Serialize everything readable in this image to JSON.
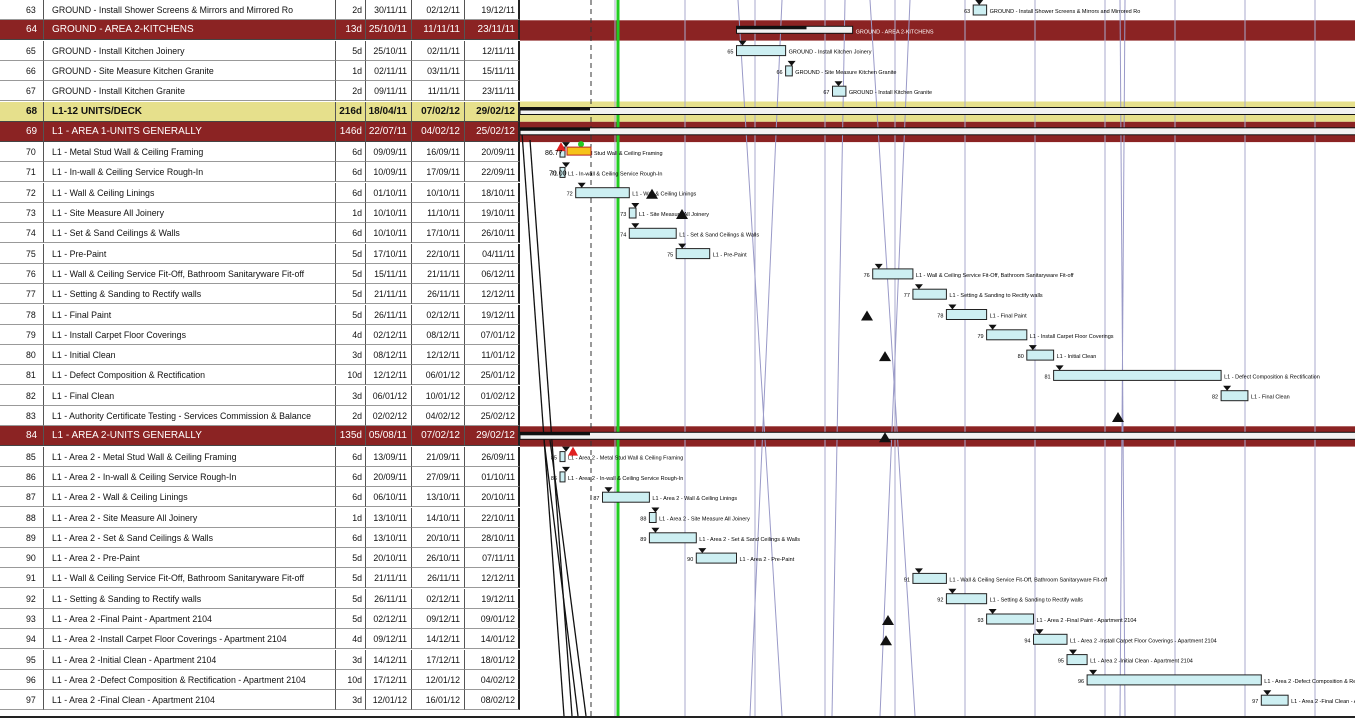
{
  "rows": [
    {
      "id": "63",
      "name": "GROUND - Install Shower Screens & Mirrors and Mirrored Ro",
      "dur": "2d",
      "start": "30/11/11",
      "finish": "02/12/11",
      "late": "19/12/11",
      "type": "task",
      "bar": [
        30.33,
        32.33
      ],
      "tag": "63",
      "label": "GROUND - Install Shower Screens & Mirrors and Mirrored Ro"
    },
    {
      "id": "64",
      "name": "GROUND - AREA 2-KITCHENS",
      "dur": "13d",
      "start": "25/10/11",
      "finish": "11/11/11",
      "late": "23/11/11",
      "type": "summary",
      "bar": [
        -5,
        12.33
      ],
      "tag": "64",
      "label": "GROUND - AREA 2-KITCHENS"
    },
    {
      "id": "65",
      "name": "GROUND - Install Kitchen Joinery",
      "dur": "5d",
      "start": "25/10/11",
      "finish": "02/11/11",
      "late": "12/11/11",
      "type": "task",
      "bar": [
        -5,
        2.33
      ],
      "tag": "65",
      "label": "GROUND - Install Kitchen Joinery"
    },
    {
      "id": "66",
      "name": "GROUND - Site Measure Kitchen Granite",
      "dur": "1d",
      "start": "02/11/11",
      "finish": "03/11/11",
      "late": "15/11/11",
      "type": "task",
      "bar": [
        2.33,
        3.33
      ],
      "tag": "66",
      "label": "GROUND - Site Measure Kitchen Granite"
    },
    {
      "id": "67",
      "name": "GROUND - Install Kitchen Granite",
      "dur": "2d",
      "start": "09/11/11",
      "finish": "11/11/11",
      "late": "23/11/11",
      "type": "task",
      "bar": [
        9.33,
        11.33
      ],
      "tag": "67",
      "label": "GROUND - Install Kitchen Granite"
    },
    {
      "id": "68",
      "name": "L1-12 UNITS/DECK",
      "dur": "216d",
      "start": "18/04/11",
      "finish": "07/02/12",
      "late": "29/02/12",
      "type": "project",
      "bar": [
        -195,
        99.33
      ],
      "tag": "",
      "label": "L1-12 UNITS/DECK"
    },
    {
      "id": "69",
      "name": "L1 - AREA 1-UNITS GENERALLY",
      "dur": "146d",
      "start": "22/07/11",
      "finish": "04/02/12",
      "late": "25/02/12",
      "type": "summary",
      "bar": [
        -100,
        96.33
      ],
      "tag": "",
      "label": "L1 - AREA 1-UNITS GENERALLY"
    },
    {
      "id": "70",
      "name": "L1 - Metal Stud Wall & Ceiling Framing",
      "dur": "6d",
      "start": "09/09/11",
      "finish": "16/09/11",
      "late": "20/09/11",
      "type": "task",
      "bar": [
        -50,
        -43
      ],
      "tag": "",
      "label": "L1 - Metal Stud Wall & Ceiling Framing"
    },
    {
      "id": "71",
      "name": "L1 - In-wall & Ceiling Service Rough-In",
      "dur": "6d",
      "start": "10/09/11",
      "finish": "17/09/11",
      "late": "22/09/11",
      "type": "task",
      "bar": [
        -49,
        -42
      ],
      "tag": "71",
      "label": "L1 - In-wall & Ceiling Service Rough-In"
    },
    {
      "id": "72",
      "name": "L1 - Wall & Ceiling Linings",
      "dur": "6d",
      "start": "01/10/11",
      "finish": "10/10/11",
      "late": "18/10/11",
      "type": "task",
      "bar": [
        -29,
        -21
      ],
      "tag": "72",
      "label": "L1 - Wall & Ceiling Linings"
    },
    {
      "id": "73",
      "name": "L1 - Site Measure All Joinery",
      "dur": "1d",
      "start": "10/10/11",
      "finish": "11/10/11",
      "late": "19/10/11",
      "type": "task",
      "bar": [
        -21,
        -20
      ],
      "tag": "73",
      "label": "L1 - Site Measure All Joinery"
    },
    {
      "id": "74",
      "name": "L1 - Set & Sand Ceilings & Walls",
      "dur": "6d",
      "start": "10/10/11",
      "finish": "17/10/11",
      "late": "26/10/11",
      "type": "task",
      "bar": [
        -21,
        -14
      ],
      "tag": "74",
      "label": "L1 - Set & Sand Ceilings & Walls"
    },
    {
      "id": "75",
      "name": "L1 - Pre-Paint",
      "dur": "5d",
      "start": "17/10/11",
      "finish": "22/10/11",
      "late": "04/11/11",
      "type": "task",
      "bar": [
        -14,
        -9
      ],
      "tag": "75",
      "label": "L1 - Pre-Paint"
    },
    {
      "id": "76",
      "name": "L1 - Wall & Ceiling Service Fit-Off, Bathroom Sanitaryware Fit-off",
      "dur": "5d",
      "start": "15/11/11",
      "finish": "21/11/11",
      "late": "06/12/11",
      "type": "task",
      "bar": [
        15.33,
        21.33
      ],
      "tag": "76",
      "label": "L1 - Wall & Ceiling Service Fit-Off, Bathroom Sanitaryware Fit-off"
    },
    {
      "id": "77",
      "name": "L1 - Setting & Sanding to Rectify walls",
      "dur": "5d",
      "start": "21/11/11",
      "finish": "26/11/11",
      "late": "12/12/11",
      "type": "task",
      "bar": [
        21.33,
        26.33
      ],
      "tag": "77",
      "label": "L1 - Setting & Sanding to Rectify walls"
    },
    {
      "id": "78",
      "name": "L1 - Final Paint",
      "dur": "5d",
      "start": "26/11/11",
      "finish": "02/12/11",
      "late": "19/12/11",
      "type": "task",
      "bar": [
        26.33,
        32.33
      ],
      "tag": "78",
      "label": "L1 - Final Paint"
    },
    {
      "id": "79",
      "name": "L1 - Install Carpet Floor Coverings",
      "dur": "4d",
      "start": "02/12/11",
      "finish": "08/12/11",
      "late": "07/01/12",
      "type": "task",
      "bar": [
        32.33,
        38.33
      ],
      "tag": "79",
      "label": "L1 - Install Carpet Floor Coverings"
    },
    {
      "id": "80",
      "name": "L1 - Initial Clean",
      "dur": "3d",
      "start": "08/12/11",
      "finish": "12/12/11",
      "late": "11/01/12",
      "type": "task",
      "bar": [
        38.33,
        42.33
      ],
      "tag": "80",
      "label": "L1 - Initial Clean"
    },
    {
      "id": "81",
      "name": "L1 - Defect Composition & Rectification",
      "dur": "10d",
      "start": "12/12/11",
      "finish": "06/01/12",
      "late": "25/01/12",
      "type": "task",
      "bar": [
        42.33,
        67.33
      ],
      "tag": "81",
      "label": "L1 - Defect Composition & Rectification"
    },
    {
      "id": "82",
      "name": "L1 - Final Clean",
      "dur": "3d",
      "start": "06/01/12",
      "finish": "10/01/12",
      "late": "01/02/12",
      "type": "task",
      "bar": [
        67.33,
        71.33
      ],
      "tag": "82",
      "label": "L1 - Final Clean"
    },
    {
      "id": "83",
      "name": "L1 - Authority Certificate Testing - Services Commission & Balance",
      "dur": "2d",
      "start": "02/02/12",
      "finish": "04/02/12",
      "late": "25/02/12",
      "type": "task",
      "bar": [
        94.33,
        96.33
      ],
      "tag": "83",
      "label": "L1 - Authority Certificate Testing - Services Commission & Balance"
    },
    {
      "id": "84",
      "name": "L1 - AREA 2-UNITS GENERALLY",
      "dur": "135d",
      "start": "05/08/11",
      "finish": "07/02/12",
      "late": "29/02/12",
      "type": "summary",
      "bar": [
        -86,
        99.33
      ],
      "tag": "",
      "label": "L1 - AREA 2-UNITS GENERALLY"
    },
    {
      "id": "85",
      "name": "L1 - Area 2 - Metal Stud Wall & Ceiling Framing",
      "dur": "6d",
      "start": "13/09/11",
      "finish": "21/09/11",
      "late": "26/09/11",
      "type": "task",
      "bar": [
        -46,
        -38
      ],
      "tag": "85",
      "label": "L1 - Area 2 - Metal Stud Wall & Ceiling Framing"
    },
    {
      "id": "86",
      "name": "L1 - Area 2 - In-wall & Ceiling Service Rough-In",
      "dur": "6d",
      "start": "20/09/11",
      "finish": "27/09/11",
      "late": "01/10/11",
      "type": "task",
      "bar": [
        -39,
        -32
      ],
      "tag": "86",
      "label": "L1 - Area 2 - In-wall & Ceiling Service Rough-In"
    },
    {
      "id": "87",
      "name": "L1 - Area 2 - Wall & Ceiling Linings",
      "dur": "6d",
      "start": "06/10/11",
      "finish": "13/10/11",
      "late": "20/10/11",
      "type": "task",
      "bar": [
        -25,
        -18
      ],
      "tag": "87",
      "label": "L1 - Area 2 - Wall & Ceiling Linings"
    },
    {
      "id": "88",
      "name": "L1 - Area 2 - Site Measure All Joinery",
      "dur": "1d",
      "start": "13/10/11",
      "finish": "14/10/11",
      "late": "22/10/11",
      "type": "task",
      "bar": [
        -18,
        -17
      ],
      "tag": "88",
      "label": "L1 - Area 2 - Site Measure All Joinery"
    },
    {
      "id": "89",
      "name": "L1 - Area 2 - Set & Sand Ceilings & Walls",
      "dur": "6d",
      "start": "13/10/11",
      "finish": "20/10/11",
      "late": "28/10/11",
      "type": "task",
      "bar": [
        -18,
        -11
      ],
      "tag": "89",
      "label": "L1 - Area 2 - Set & Sand Ceilings & Walls"
    },
    {
      "id": "90",
      "name": "L1 - Area 2 - Pre-Paint",
      "dur": "5d",
      "start": "20/10/11",
      "finish": "26/10/11",
      "late": "07/11/11",
      "type": "task",
      "bar": [
        -11,
        -5
      ],
      "tag": "90",
      "label": "L1 - Area 2 - Pre-Paint"
    },
    {
      "id": "91",
      "name": "L1 - Wall & Ceiling Service Fit-Off, Bathroom Sanitaryware Fit-off",
      "dur": "5d",
      "start": "21/11/11",
      "finish": "26/11/11",
      "late": "12/12/11",
      "type": "task",
      "bar": [
        21.33,
        26.33
      ],
      "tag": "91",
      "label": "L1 - Wall & Ceiling Service Fit-Off, Bathroom Sanitaryware Fit-off"
    },
    {
      "id": "92",
      "name": "L1 - Setting & Sanding to Rectify walls",
      "dur": "5d",
      "start": "26/11/11",
      "finish": "02/12/11",
      "late": "19/12/11",
      "type": "task",
      "bar": [
        26.33,
        32.33
      ],
      "tag": "92",
      "label": "L1 - Setting & Sanding to Rectify walls"
    },
    {
      "id": "93",
      "name": "L1 - Area 2 -Final Paint - Apartment 2104",
      "dur": "5d",
      "start": "02/12/11",
      "finish": "09/12/11",
      "late": "09/01/12",
      "type": "task",
      "bar": [
        32.33,
        39.33
      ],
      "tag": "93",
      "label": "L1 - Area 2 -Final Paint - Apartment 2104"
    },
    {
      "id": "94",
      "name": "L1 - Area 2 -Install Carpet Floor Coverings - Apartment 2104",
      "dur": "4d",
      "start": "09/12/11",
      "finish": "14/12/11",
      "late": "14/01/12",
      "type": "task",
      "bar": [
        39.33,
        44.33
      ],
      "tag": "94",
      "label": "L1 - Area 2 -Install Carpet Floor Coverings - Apartment 2104"
    },
    {
      "id": "95",
      "name": "L1 - Area 2 -Initial Clean - Apartment 2104",
      "dur": "3d",
      "start": "14/12/11",
      "finish": "17/12/11",
      "late": "18/01/12",
      "type": "task",
      "bar": [
        44.33,
        47.33
      ],
      "tag": "95",
      "label": "L1 - Area 2 -Initial Clean - Apartment 2104"
    },
    {
      "id": "96",
      "name": "L1 - Area 2 -Defect Composition & Rectification - Apartment 2104",
      "dur": "10d",
      "start": "17/12/11",
      "finish": "12/01/12",
      "late": "04/02/12",
      "type": "task",
      "bar": [
        47.33,
        73.33
      ],
      "tag": "96",
      "label": "L1 - Area 2 -Defect Composition & Rectification - Apartment 2104"
    },
    {
      "id": "97",
      "name": "L1 - Area 2 -Final Clean - Apartment 2104",
      "dur": "3d",
      "start": "12/01/12",
      "finish": "16/01/12",
      "late": "08/02/12",
      "type": "task",
      "bar": [
        73.33,
        77.33
      ],
      "tag": "97",
      "label": "L1 - Area 2 -Final Clean - Apartment 2104"
    }
  ],
  "annotations": {
    "float_70": "86.77",
    "float_71": "70.00"
  },
  "colors": {
    "summary": "#8b2323",
    "project": "#e6e08c",
    "task_fill": "#cdeff2",
    "status_line": "#22cc22",
    "link": "#9a9ac8"
  }
}
